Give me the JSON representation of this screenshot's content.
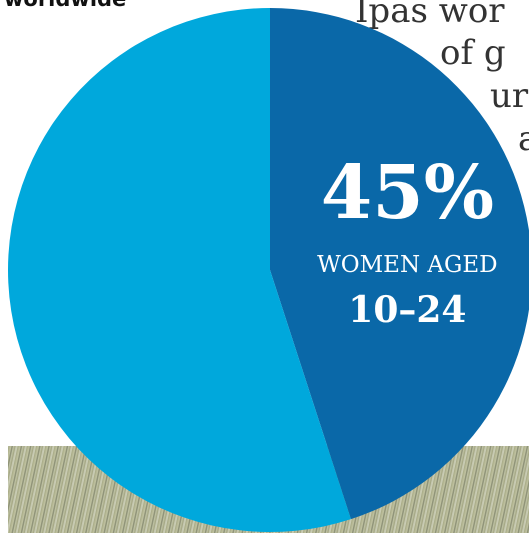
{
  "heading": "worldwide",
  "body_lines": [
    "Ipas wor",
    "of g",
    "ur",
    "a"
  ],
  "chart_data": {
    "type": "pie",
    "categories": [
      [
        "WOMEN AGED",
        "10–24"
      ],
      null
    ],
    "values": [
      45,
      55
    ],
    "value_labels": [
      "45%",
      null
    ],
    "colors": [
      "#0a68a8",
      "#00a8dc"
    ]
  }
}
